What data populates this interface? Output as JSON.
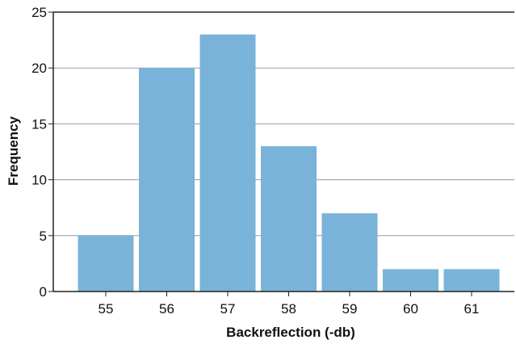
{
  "chart_data": {
    "type": "bar",
    "categories": [
      "55",
      "56",
      "57",
      "58",
      "59",
      "60",
      "61"
    ],
    "values": [
      5,
      20,
      23,
      13,
      7,
      2,
      2
    ],
    "title": "",
    "xlabel": "Backreflection (-db)",
    "ylabel": "Frequency",
    "ylim": [
      0,
      25
    ],
    "yticks": [
      "0",
      "5",
      "10",
      "15",
      "20",
      "25"
    ],
    "grid": "horizontal",
    "legend": "none",
    "bar_color": "#7ab3d9",
    "grid_color": "#9a9a9a",
    "axis_color": "#222222"
  }
}
